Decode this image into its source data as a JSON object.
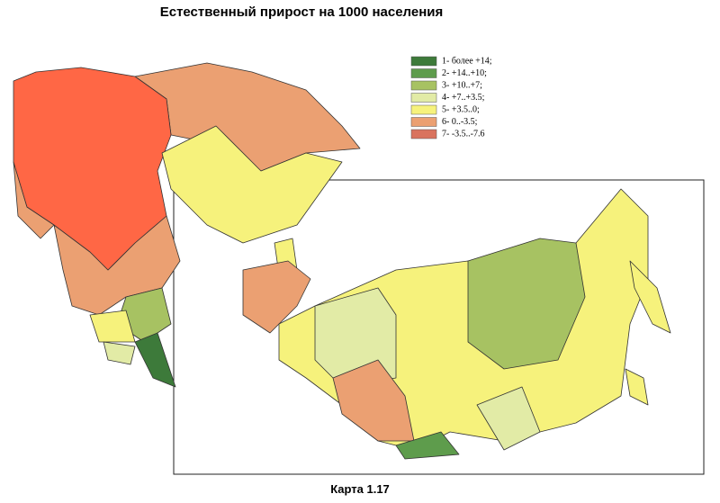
{
  "title": "Естественный прирост на 1000 населения",
  "legend": {
    "items": [
      {
        "label": "1- более +14;",
        "color": "#3d7a3a"
      },
      {
        "label": "2- +14..+10;",
        "color": "#5e9c4c"
      },
      {
        "label": "3- +10..+7;",
        "color": "#a7c262"
      },
      {
        "label": "4- +7..+3.5;",
        "color": "#e2eba6"
      },
      {
        "label": "5- +3.5..0;",
        "color": "#f6f27c"
      },
      {
        "label": "6- 0..-3.5;",
        "color": "#eba072"
      },
      {
        "label": "7- -3.5..-7.6",
        "color": "#d9735e"
      }
    ]
  },
  "caption": "Карта 1.17"
}
